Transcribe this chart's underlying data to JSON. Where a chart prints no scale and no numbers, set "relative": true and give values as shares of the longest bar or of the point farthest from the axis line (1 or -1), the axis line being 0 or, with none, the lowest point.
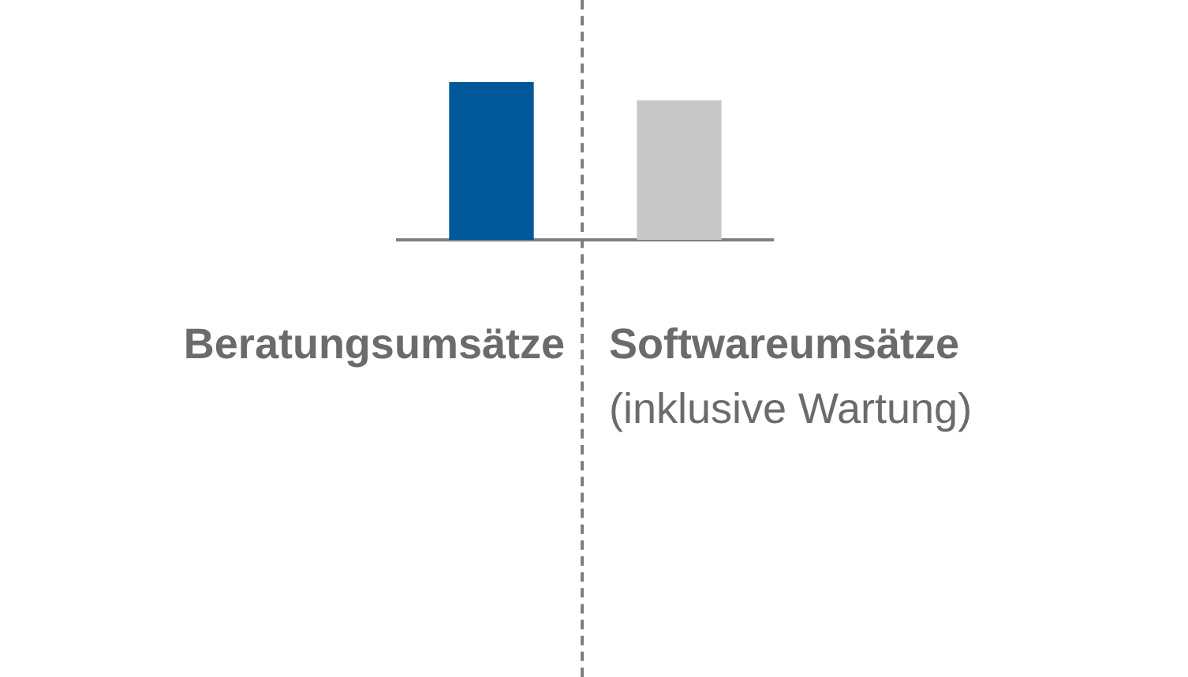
{
  "chart_data": {
    "type": "bar",
    "relative": true,
    "categories": [
      "Beratungsumsätze",
      "Softwareumsätze"
    ],
    "values": [
      1,
      0.88
    ],
    "colors": [
      "#00589a",
      "#c8c8c8"
    ],
    "annotations": [
      "(inklusive Wartung)"
    ]
  }
}
